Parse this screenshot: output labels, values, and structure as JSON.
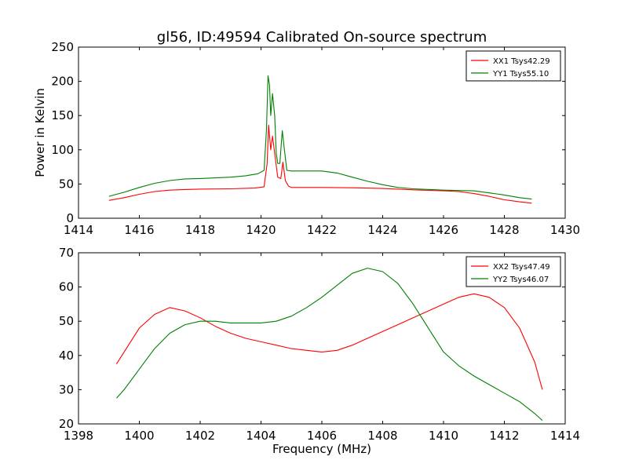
{
  "figure": {
    "title": "gl56, ID:49594 Calibrated On-source spectrum",
    "xlabel": "Frequency (MHz)",
    "ylabel": "Power in Kelvin"
  },
  "colors": {
    "red": "#ff0000",
    "green": "#008000"
  },
  "chart_data": [
    {
      "type": "line",
      "xlim": [
        1414,
        1430
      ],
      "ylim": [
        0,
        250
      ],
      "xticks": [
        1414,
        1416,
        1418,
        1420,
        1422,
        1424,
        1426,
        1428,
        1430
      ],
      "yticks": [
        0,
        50,
        100,
        150,
        200,
        250
      ],
      "legend": "top-right",
      "series": [
        {
          "name": "XX1 Tsys42.29",
          "color": "#ff0000",
          "points": [
            [
              1415.0,
              26
            ],
            [
              1415.5,
              30
            ],
            [
              1416.0,
              35
            ],
            [
              1416.5,
              39
            ],
            [
              1417.0,
              41
            ],
            [
              1417.5,
              42
            ],
            [
              1418.0,
              42.5
            ],
            [
              1419.0,
              43
            ],
            [
              1419.8,
              44
            ],
            [
              1420.1,
              46
            ],
            [
              1420.2,
              80
            ],
            [
              1420.25,
              136
            ],
            [
              1420.32,
              100
            ],
            [
              1420.38,
              120
            ],
            [
              1420.45,
              95
            ],
            [
              1420.55,
              60
            ],
            [
              1420.65,
              58
            ],
            [
              1420.72,
              82
            ],
            [
              1420.8,
              55
            ],
            [
              1420.9,
              47
            ],
            [
              1421.0,
              45
            ],
            [
              1422.0,
              45
            ],
            [
              1423.0,
              44.5
            ],
            [
              1424.0,
              43.5
            ],
            [
              1425.0,
              41.5
            ],
            [
              1426.0,
              40
            ],
            [
              1426.5,
              39
            ],
            [
              1427.0,
              36
            ],
            [
              1427.5,
              32
            ],
            [
              1428.0,
              27
            ],
            [
              1428.5,
              24
            ],
            [
              1428.9,
              22
            ]
          ]
        },
        {
          "name": "YY1 Tsys55.10",
          "color": "#008000",
          "points": [
            [
              1415.0,
              32
            ],
            [
              1415.5,
              38
            ],
            [
              1416.0,
              45
            ],
            [
              1416.5,
              51
            ],
            [
              1417.0,
              55
            ],
            [
              1417.5,
              57.5
            ],
            [
              1418.0,
              58
            ],
            [
              1418.5,
              59
            ],
            [
              1419.0,
              60
            ],
            [
              1419.5,
              62
            ],
            [
              1419.9,
              65
            ],
            [
              1420.1,
              70
            ],
            [
              1420.18,
              130
            ],
            [
              1420.23,
              208
            ],
            [
              1420.28,
              195
            ],
            [
              1420.32,
              150
            ],
            [
              1420.38,
              182
            ],
            [
              1420.45,
              150
            ],
            [
              1420.5,
              95
            ],
            [
              1420.55,
              80
            ],
            [
              1420.62,
              80
            ],
            [
              1420.7,
              128
            ],
            [
              1420.77,
              100
            ],
            [
              1420.85,
              70
            ],
            [
              1421.0,
              69
            ],
            [
              1422.0,
              69
            ],
            [
              1422.5,
              66
            ],
            [
              1423.0,
              60
            ],
            [
              1423.5,
              54
            ],
            [
              1424.0,
              49
            ],
            [
              1424.5,
              45
            ],
            [
              1425.0,
              43
            ],
            [
              1426.0,
              41
            ],
            [
              1426.5,
              40.5
            ],
            [
              1427.0,
              40
            ],
            [
              1427.5,
              37
            ],
            [
              1428.0,
              34
            ],
            [
              1428.5,
              30
            ],
            [
              1428.9,
              28
            ]
          ]
        }
      ]
    },
    {
      "type": "line",
      "xlim": [
        1398,
        1414
      ],
      "ylim": [
        20,
        70
      ],
      "xticks": [
        1398,
        1400,
        1402,
        1404,
        1406,
        1408,
        1410,
        1412,
        1414
      ],
      "yticks": [
        20,
        30,
        40,
        50,
        60,
        70
      ],
      "legend": "top-right",
      "series": [
        {
          "name": "XX2 Tsys47.49",
          "color": "#ff0000",
          "points": [
            [
              1399.25,
              37.5
            ],
            [
              1399.5,
              41
            ],
            [
              1400.0,
              48
            ],
            [
              1400.5,
              52
            ],
            [
              1401.0,
              54
            ],
            [
              1401.5,
              53
            ],
            [
              1402.0,
              51
            ],
            [
              1402.5,
              48.5
            ],
            [
              1403.0,
              46.5
            ],
            [
              1403.5,
              45
            ],
            [
              1404.0,
              44
            ],
            [
              1404.5,
              43
            ],
            [
              1405.0,
              42
            ],
            [
              1405.5,
              41.5
            ],
            [
              1406.0,
              41
            ],
            [
              1406.5,
              41.5
            ],
            [
              1407.0,
              43
            ],
            [
              1407.5,
              45
            ],
            [
              1408.0,
              47
            ],
            [
              1408.5,
              49
            ],
            [
              1409.0,
              51
            ],
            [
              1409.5,
              53
            ],
            [
              1410.0,
              55
            ],
            [
              1410.5,
              57
            ],
            [
              1411.0,
              58
            ],
            [
              1411.5,
              57
            ],
            [
              1412.0,
              54
            ],
            [
              1412.5,
              48
            ],
            [
              1413.0,
              38
            ],
            [
              1413.25,
              30
            ]
          ]
        },
        {
          "name": "YY2 Tsys46.07",
          "color": "#008000",
          "points": [
            [
              1399.25,
              27.5
            ],
            [
              1399.5,
              30
            ],
            [
              1400.0,
              36
            ],
            [
              1400.5,
              42
            ],
            [
              1401.0,
              46.5
            ],
            [
              1401.5,
              49
            ],
            [
              1402.0,
              50
            ],
            [
              1402.5,
              50
            ],
            [
              1403.0,
              49.5
            ],
            [
              1403.5,
              49.5
            ],
            [
              1404.0,
              49.5
            ],
            [
              1404.5,
              50
            ],
            [
              1405.0,
              51.5
            ],
            [
              1405.5,
              54
            ],
            [
              1406.0,
              57
            ],
            [
              1406.5,
              60.5
            ],
            [
              1407.0,
              64
            ],
            [
              1407.5,
              65.5
            ],
            [
              1408.0,
              64.5
            ],
            [
              1408.5,
              61
            ],
            [
              1409.0,
              55
            ],
            [
              1409.5,
              48
            ],
            [
              1410.0,
              41
            ],
            [
              1410.5,
              37
            ],
            [
              1411.0,
              34
            ],
            [
              1411.5,
              31.5
            ],
            [
              1412.0,
              29
            ],
            [
              1412.5,
              26.5
            ],
            [
              1413.0,
              23
            ],
            [
              1413.25,
              21
            ]
          ]
        }
      ]
    }
  ]
}
